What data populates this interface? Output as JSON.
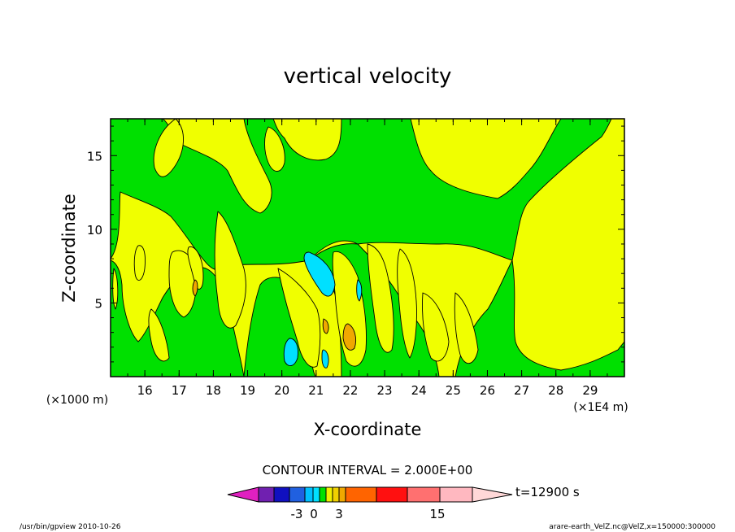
{
  "chart_data": {
    "type": "contour",
    "title": "vertical velocity",
    "xlabel": "X-coordinate",
    "ylabel": "Z-coordinate",
    "x_scale_note": "(×1E4 m)",
    "y_scale_note": "(×1000 m)",
    "x_ticks": [
      16,
      17,
      18,
      19,
      20,
      21,
      22,
      23,
      24,
      25,
      26,
      27,
      28,
      29
    ],
    "y_ticks": [
      5,
      10,
      15
    ],
    "xlim": [
      15,
      30
    ],
    "ylim": [
      0,
      17.5
    ],
    "contour_interval_text": "CONTOUR INTERVAL = 2.000E+00",
    "time_label": "t=12900  s",
    "colorbar": {
      "levels": [
        -9,
        -7,
        -5,
        -3,
        -1,
        0,
        1,
        3,
        5,
        7,
        9,
        11,
        13,
        15,
        17,
        19
      ],
      "tick_labels": [
        "-3",
        "0",
        "3",
        "15"
      ],
      "tick_values": [
        -3,
        0,
        3,
        15
      ],
      "colors": [
        "#e020c0",
        "#7020b0",
        "#1010c0",
        "#2060e0",
        "#00c0ff",
        "#00e0ff",
        "#00e000",
        "#f0f000",
        "#f0d000",
        "#f0a800",
        "#ff6400",
        "#ff1010",
        "#ff7070",
        "#ffb8c0",
        "#ffd8d8"
      ]
    },
    "field_colors": {
      "negative_strong": "#00e0ff",
      "near_zero_negative": "#00e000",
      "near_zero_positive": "#f0ff00",
      "positive": "#f0a800"
    }
  },
  "footer": {
    "left": "/usr/bin/gpview   2010-10-26",
    "right": "arare-earth_VelZ.nc@VelZ,x=150000:300000"
  }
}
